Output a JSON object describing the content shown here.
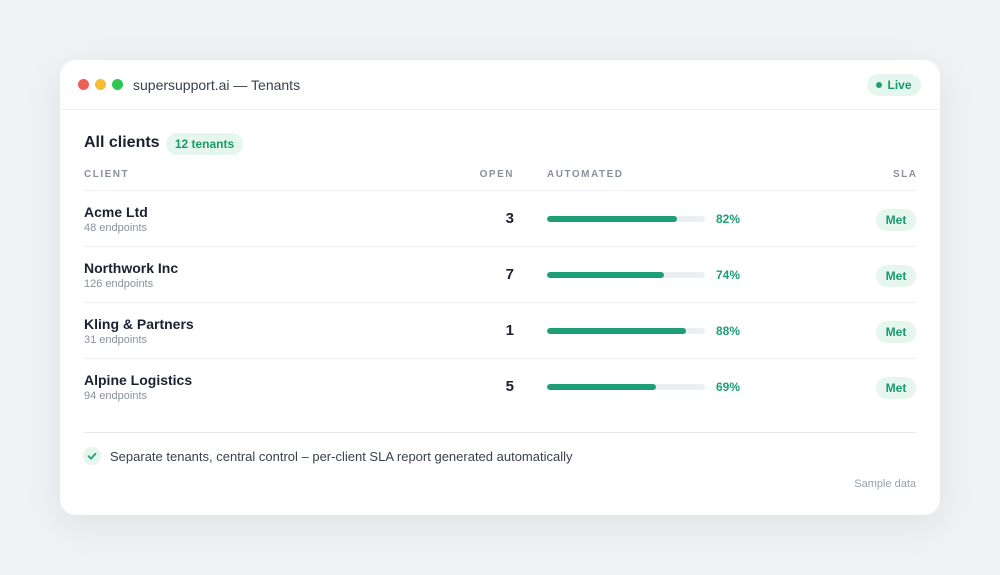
{
  "window": {
    "title": "supersupport.ai — Tenants",
    "status": "Live"
  },
  "header": {
    "title": "All clients",
    "badge": "12 tenants"
  },
  "table": {
    "columns": [
      "CLIENT",
      "OPEN",
      "AUTOMATED",
      "SLA"
    ],
    "automated_lim": [
      0,
      100
    ],
    "rows": [
      {
        "name": "Acme Ltd",
        "endpoints": "48 endpoints",
        "open": 3,
        "automated": 82,
        "automated_label": "82%",
        "sla": "Met"
      },
      {
        "name": "Northwork Inc",
        "endpoints": "126 endpoints",
        "open": 7,
        "automated": 74,
        "automated_label": "74%",
        "sla": "Met"
      },
      {
        "name": "Kling & Partners",
        "endpoints": "31 endpoints",
        "open": 1,
        "automated": 88,
        "automated_label": "88%",
        "sla": "Met"
      },
      {
        "name": "Alpine Logistics",
        "endpoints": "94 endpoints",
        "open": 5,
        "automated": 69,
        "automated_label": "69%",
        "sla": "Met"
      }
    ]
  },
  "footer": {
    "note": "Separate tenants, central control – per-client SLA report generated automatically",
    "source": "Sample data"
  }
}
